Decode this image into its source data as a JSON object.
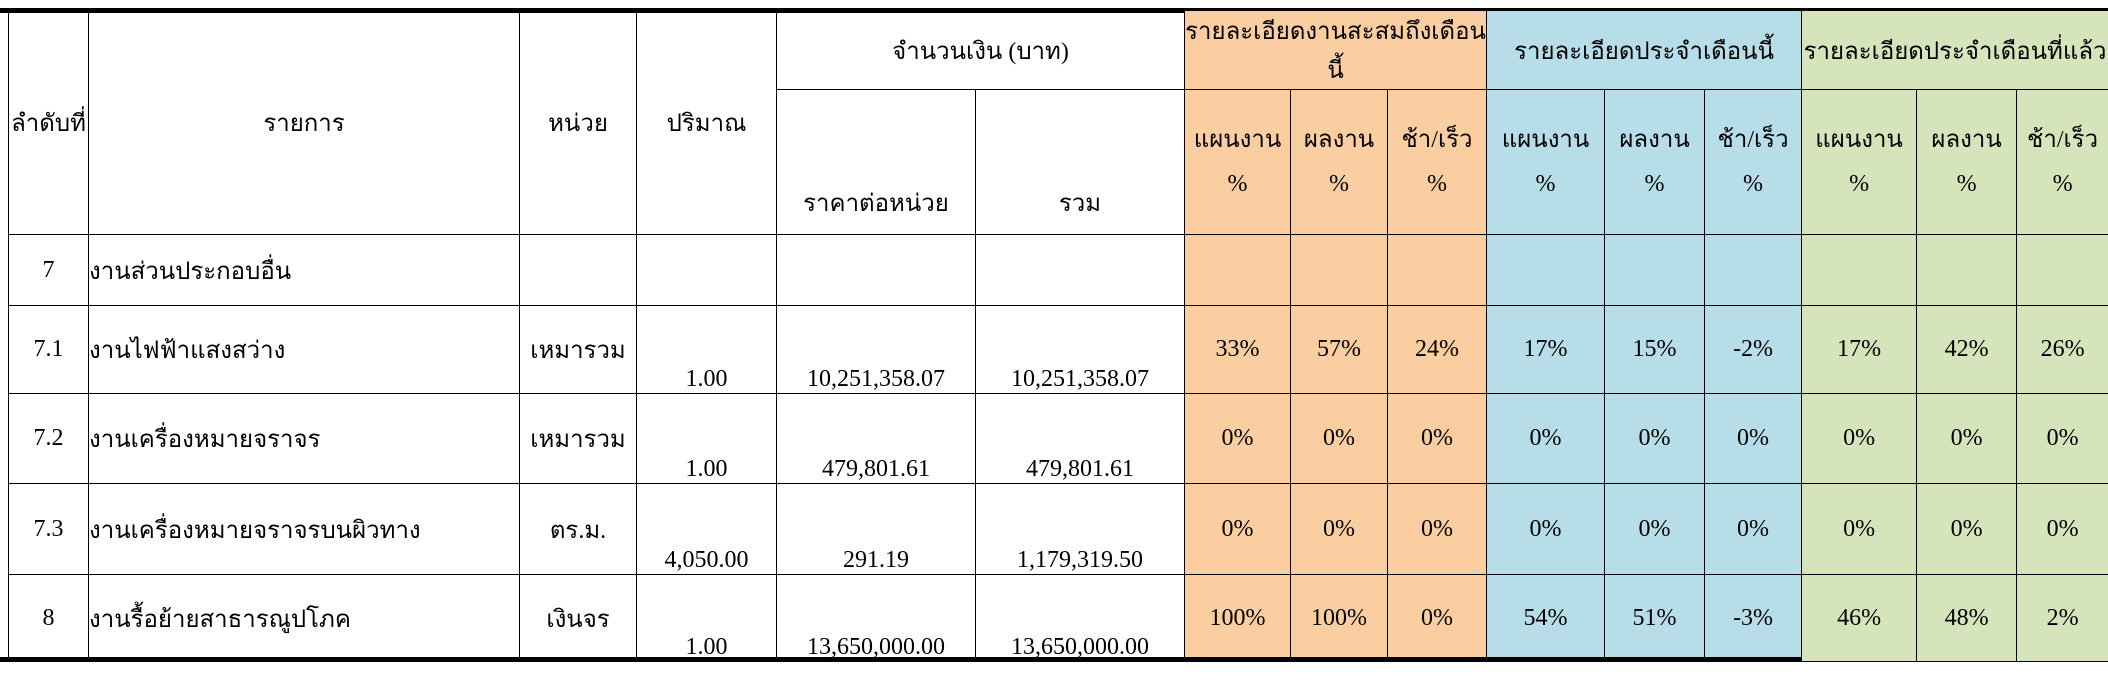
{
  "colors": {
    "cumulative_section": "#FBCEA2",
    "current_month_section": "#B7DEE8",
    "previous_month_section": "#D6E4BC",
    "grid_line": "#000000",
    "background": "#FFFFFF"
  },
  "table": {
    "headers": {
      "no": "ลำดับที่",
      "item": "รายการ",
      "unit": "หน่วย",
      "qty": "ปริมาณ",
      "amount_group": "จำนวนเงิน (บาท)",
      "unit_price": "ราคาต่อหน่วย",
      "total": "รวม",
      "sections": [
        {
          "title": "รายละเอียดงานสะสมถึงเดือนนี้",
          "color": "#FBCEA2"
        },
        {
          "title": "รายละเอียดประจำเดือนนี้",
          "color": "#B7DEE8"
        },
        {
          "title": "รายละเอียดประจำเดือนที่แล้ว",
          "color": "#D6E4BC"
        }
      ],
      "sub_headers": [
        "แผนงาน\n%",
        "ผลงาน\n%",
        "ช้า/เร็ว\n%"
      ]
    },
    "rows": [
      {
        "no": "7",
        "item": "งานส่วนประกอบอื่น",
        "unit": "",
        "qty": "",
        "unit_price": "",
        "total": "",
        "cum": [
          "",
          "",
          ""
        ],
        "cur": [
          "",
          "",
          ""
        ],
        "prev": [
          "",
          "",
          ""
        ]
      },
      {
        "no": "7.1",
        "item": "งานไฟฟ้าแสงสว่าง",
        "unit": "เหมารวม",
        "qty": "1.00",
        "unit_price": "10,251,358.07",
        "total": "10,251,358.07",
        "cum": [
          "33%",
          "57%",
          "24%"
        ],
        "cur": [
          "17%",
          "15%",
          "-2%"
        ],
        "prev": [
          "17%",
          "42%",
          "26%"
        ]
      },
      {
        "no": "7.2",
        "item": "งานเครื่องหมายจราจร",
        "unit": "เหมารวม",
        "qty": "1.00",
        "unit_price": "479,801.61",
        "total": "479,801.61",
        "cum": [
          "0%",
          "0%",
          "0%"
        ],
        "cur": [
          "0%",
          "0%",
          "0%"
        ],
        "prev": [
          "0%",
          "0%",
          "0%"
        ]
      },
      {
        "no": "7.3",
        "item": "งานเครื่องหมายจราจรบนผิวทาง",
        "unit": "ตร.ม.",
        "qty": "4,050.00",
        "unit_price": "291.19",
        "total": "1,179,319.50",
        "cum": [
          "0%",
          "0%",
          "0%"
        ],
        "cur": [
          "0%",
          "0%",
          "0%"
        ],
        "prev": [
          "0%",
          "0%",
          "0%"
        ]
      },
      {
        "no": "8",
        "item": "งานรื้อย้ายสาธารณูปโภค",
        "unit": "เงินจร",
        "qty": "1.00",
        "unit_price": "13,650,000.00",
        "total": "13,650,000.00",
        "cum": [
          "100%",
          "100%",
          "0%"
        ],
        "cur": [
          "54%",
          "51%",
          "-3%"
        ],
        "prev": [
          "46%",
          "48%",
          "2%"
        ]
      }
    ]
  }
}
